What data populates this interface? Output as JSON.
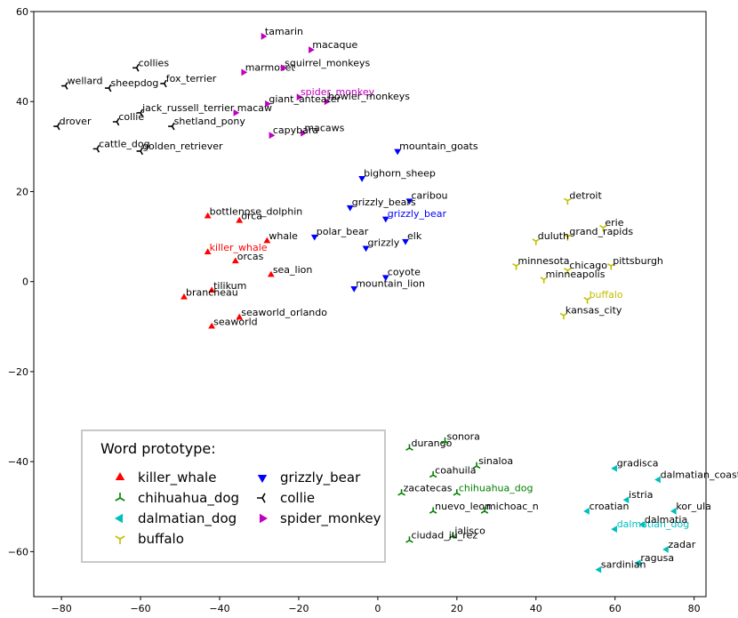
{
  "chart_data": {
    "type": "scatter",
    "xlim": [
      -87,
      83
    ],
    "ylim": [
      -70,
      60
    ],
    "xticks": [
      -80,
      -60,
      -40,
      -20,
      0,
      20,
      40,
      60,
      80
    ],
    "yticks": [
      -60,
      -40,
      -20,
      0,
      20,
      40,
      60
    ],
    "legend": {
      "title": "Word prototype:",
      "placement": "bottom-left",
      "entries": [
        "killer_whale",
        "chihuahua_dog",
        "dalmatian_dog",
        "buffalo",
        "grizzly_bear",
        "collie",
        "spider_monkey"
      ]
    },
    "series": [
      {
        "name": "killer_whale",
        "color": "#ff0000",
        "marker": "triangle-up",
        "points": [
          {
            "label": "killer_whale",
            "x": -43,
            "y": 6.5,
            "proto": true
          },
          {
            "label": "bottlenose_dolphin",
            "x": -43,
            "y": 14.5
          },
          {
            "label": "orca",
            "x": -35,
            "y": 13.5
          },
          {
            "label": "whale",
            "x": -28,
            "y": 9
          },
          {
            "label": "orcas",
            "x": -36,
            "y": 4.5
          },
          {
            "label": "sea_lion",
            "x": -27,
            "y": 1.5
          },
          {
            "label": "tilikum",
            "x": -42,
            "y": -2
          },
          {
            "label": "brancheau",
            "x": -49,
            "y": -3.5
          },
          {
            "label": "seaworld_orlando",
            "x": -35,
            "y": -8
          },
          {
            "label": "seaworld",
            "x": -42,
            "y": -10
          }
        ]
      },
      {
        "name": "grizzly_bear",
        "color": "#0000ff",
        "marker": "triangle-down",
        "points": [
          {
            "label": "grizzly_bear",
            "x": 2,
            "y": 14,
            "proto": true
          },
          {
            "label": "mountain_goats",
            "x": 5,
            "y": 29
          },
          {
            "label": "bighorn_sheep",
            "x": -4,
            "y": 23
          },
          {
            "label": "caribou",
            "x": 8,
            "y": 18
          },
          {
            "label": "grizzly_bears",
            "x": -7,
            "y": 16.5
          },
          {
            "label": "polar_bear",
            "x": -16,
            "y": 10
          },
          {
            "label": "elk",
            "x": 7,
            "y": 9
          },
          {
            "label": "grizzly",
            "x": -3,
            "y": 7.5
          },
          {
            "label": "coyote",
            "x": 2,
            "y": 1
          },
          {
            "label": "mountain_lion",
            "x": -6,
            "y": -1.5
          }
        ]
      },
      {
        "name": "spider_monkey",
        "color": "#bf00bf",
        "marker": "triangle-right",
        "points": [
          {
            "label": "spider_monkey",
            "x": -20,
            "y": 41,
            "proto": true
          },
          {
            "label": "tamarin",
            "x": -29,
            "y": 54.5
          },
          {
            "label": "macaque",
            "x": -17,
            "y": 51.5
          },
          {
            "label": "marmoset",
            "x": -34,
            "y": 46.5
          },
          {
            "label": "squirrel_monkeys",
            "x": -24,
            "y": 47.5
          },
          {
            "label": "howler_monkeys",
            "x": -13,
            "y": 40
          },
          {
            "label": "giant_anteater",
            "x": -28,
            "y": 39.5
          },
          {
            "label": "macaw",
            "x": -36,
            "y": 37.5
          },
          {
            "label": "macaws",
            "x": -19,
            "y": 33
          },
          {
            "label": "capybara",
            "x": -27,
            "y": 32.5
          }
        ]
      },
      {
        "name": "collie",
        "color": "#000000",
        "marker": "tri-left",
        "points": [
          {
            "label": "collies",
            "x": -61,
            "y": 47.5
          },
          {
            "label": "wellard",
            "x": -79,
            "y": 43.5
          },
          {
            "label": "sheepdog",
            "x": -68,
            "y": 43
          },
          {
            "label": "fox_terrier",
            "x": -54,
            "y": 44
          },
          {
            "label": "collie",
            "x": -66,
            "y": 35.5
          },
          {
            "label": "jack_russell_terrier",
            "x": -60,
            "y": 37.5
          },
          {
            "label": "drover",
            "x": -81,
            "y": 34.5
          },
          {
            "label": "shetland_pony",
            "x": -52,
            "y": 34.5
          },
          {
            "label": "cattle_dog",
            "x": -71,
            "y": 29.5
          },
          {
            "label": "golden_retriever",
            "x": -60,
            "y": 29
          }
        ]
      },
      {
        "name": "buffalo",
        "color": "#bfbf00",
        "marker": "tri-down",
        "points": [
          {
            "label": "buffalo",
            "x": 53,
            "y": -4,
            "proto": true
          },
          {
            "label": "detroit",
            "x": 48,
            "y": 18
          },
          {
            "label": "erie",
            "x": 57,
            "y": 12
          },
          {
            "label": "grand_rapids",
            "x": 48,
            "y": 10
          },
          {
            "label": "duluth",
            "x": 40,
            "y": 9
          },
          {
            "label": "minnesota",
            "x": 35,
            "y": 3.5
          },
          {
            "label": "chicago",
            "x": 48,
            "y": 2.5
          },
          {
            "label": "pittsburgh",
            "x": 59,
            "y": 3.5
          },
          {
            "label": "minneapolis",
            "x": 42,
            "y": 0.5
          },
          {
            "label": "kansas_city",
            "x": 47,
            "y": -7.5
          }
        ]
      },
      {
        "name": "chihuahua_dog",
        "color": "#008000",
        "marker": "tri-up",
        "points": [
          {
            "label": "chihuahua_dog",
            "x": 20,
            "y": -47,
            "proto": true
          },
          {
            "label": "durango",
            "x": 8,
            "y": -37
          },
          {
            "label": "sonora",
            "x": 17,
            "y": -35.5
          },
          {
            "label": "sinaloa",
            "x": 25,
            "y": -41
          },
          {
            "label": "coahuila",
            "x": 14,
            "y": -43
          },
          {
            "label": "zacatecas",
            "x": 6,
            "y": -47
          },
          {
            "label": "nuevo_leon",
            "x": 14,
            "y": -51
          },
          {
            "label": "michoac_n",
            "x": 27,
            "y": -51
          },
          {
            "label": "jalisco",
            "x": 19,
            "y": -56.5
          },
          {
            "label": "ciudad_ju_rez",
            "x": 8,
            "y": -57.5
          }
        ]
      },
      {
        "name": "dalmatian_dog",
        "color": "#00bfbf",
        "marker": "triangle-left",
        "points": [
          {
            "label": "dalmatian_dog",
            "x": 60,
            "y": -55,
            "proto": true
          },
          {
            "label": "gradisca",
            "x": 60,
            "y": -41.5
          },
          {
            "label": "dalmatian_coast",
            "x": 71,
            "y": -44
          },
          {
            "label": "istria",
            "x": 63,
            "y": -48.5
          },
          {
            "label": "croatian",
            "x": 53,
            "y": -51
          },
          {
            "label": "kor_ula",
            "x": 75,
            "y": -51
          },
          {
            "label": "dalmatia",
            "x": 67,
            "y": -54
          },
          {
            "label": "zadar",
            "x": 73,
            "y": -59.5
          },
          {
            "label": "ragusa",
            "x": 66,
            "y": -62.5
          },
          {
            "label": "sardinian",
            "x": 56,
            "y": -64
          }
        ]
      }
    ]
  }
}
